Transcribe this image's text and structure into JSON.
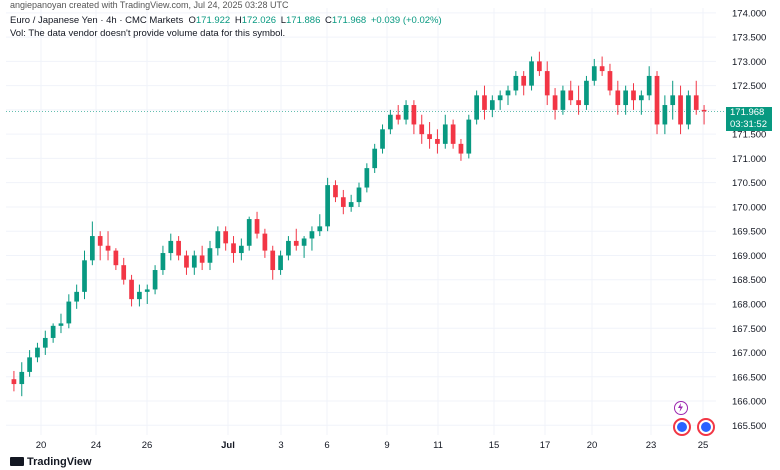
{
  "header": {
    "top_line": "angiepanoyan created with TradingView.com, Jul 24, 2025 03:28 UTC",
    "symbol": "Euro / Japanese Yen · 4h · CMC Markets",
    "open_label": "O",
    "open": "171.922",
    "high_label": "H",
    "high": "172.026",
    "low_label": "L",
    "low": "171.886",
    "close_label": "C",
    "close": "171.968",
    "change": "+0.039 (+0.02%)",
    "volume_note": "Vol: The data vendor doesn't provide volume data for this symbol."
  },
  "price_tag": {
    "price": "171.968",
    "countdown": "03:31:52"
  },
  "footer": {
    "logo_text": "TradingView"
  },
  "colors": {
    "up": "#089981",
    "down": "#f23645",
    "grid": "#f0f3fa",
    "text": "#131722",
    "accent": "#9c27b0",
    "blue": "#2962ff"
  },
  "icons": [
    "lightning-icon",
    "event-icon"
  ],
  "chart_data": {
    "type": "candlestick",
    "title": "Euro / Japanese Yen · 4h · CMC Markets",
    "xlabel": "",
    "ylabel": "",
    "ylim": [
      165.3,
      174.1
    ],
    "grid": true,
    "y_ticks": [
      "174.000",
      "173.500",
      "173.000",
      "172.500",
      "172.000",
      "171.500",
      "171.000",
      "170.500",
      "170.000",
      "169.500",
      "169.000",
      "168.500",
      "168.000",
      "167.500",
      "167.000",
      "166.500",
      "166.000",
      "165.500"
    ],
    "x_ticks": [
      "20",
      "24",
      "26",
      "Jul",
      "3",
      "6",
      "9",
      "11",
      "15",
      "17",
      "20",
      "23",
      "25"
    ],
    "last_price": 171.968,
    "candles": [
      [
        166.45,
        166.62,
        166.2,
        166.35
      ],
      [
        166.35,
        166.8,
        166.1,
        166.6
      ],
      [
        166.6,
        167.05,
        166.5,
        166.9
      ],
      [
        166.9,
        167.2,
        166.8,
        167.1
      ],
      [
        167.1,
        167.45,
        166.95,
        167.3
      ],
      [
        167.3,
        167.6,
        167.2,
        167.55
      ],
      [
        167.55,
        167.8,
        167.4,
        167.6
      ],
      [
        167.6,
        168.2,
        167.5,
        168.05
      ],
      [
        168.05,
        168.4,
        167.9,
        168.25
      ],
      [
        168.25,
        169.1,
        168.1,
        168.9
      ],
      [
        168.9,
        169.7,
        168.8,
        169.4
      ],
      [
        169.4,
        169.5,
        168.9,
        169.2
      ],
      [
        169.2,
        169.5,
        168.9,
        169.1
      ],
      [
        169.1,
        169.15,
        168.7,
        168.8
      ],
      [
        168.8,
        168.95,
        168.4,
        168.5
      ],
      [
        168.5,
        168.6,
        167.95,
        168.1
      ],
      [
        168.1,
        168.4,
        167.95,
        168.25
      ],
      [
        168.25,
        168.4,
        168.0,
        168.3
      ],
      [
        168.3,
        168.8,
        168.2,
        168.7
      ],
      [
        168.7,
        169.2,
        168.6,
        169.05
      ],
      [
        169.05,
        169.45,
        168.9,
        169.3
      ],
      [
        169.3,
        169.4,
        168.9,
        169.0
      ],
      [
        169.0,
        169.1,
        168.6,
        168.75
      ],
      [
        168.75,
        169.1,
        168.6,
        169.0
      ],
      [
        169.0,
        169.2,
        168.7,
        168.85
      ],
      [
        168.85,
        169.3,
        168.7,
        169.15
      ],
      [
        169.15,
        169.6,
        169.0,
        169.5
      ],
      [
        169.5,
        169.6,
        169.1,
        169.25
      ],
      [
        169.25,
        169.4,
        168.85,
        169.05
      ],
      [
        169.05,
        169.35,
        168.9,
        169.2
      ],
      [
        169.2,
        169.8,
        169.1,
        169.75
      ],
      [
        169.75,
        169.9,
        169.35,
        169.45
      ],
      [
        169.45,
        169.55,
        168.95,
        169.1
      ],
      [
        169.1,
        169.2,
        168.5,
        168.7
      ],
      [
        168.7,
        169.1,
        168.6,
        169.0
      ],
      [
        169.0,
        169.4,
        168.9,
        169.3
      ],
      [
        169.3,
        169.55,
        169.1,
        169.2
      ],
      [
        169.2,
        169.4,
        168.95,
        169.35
      ],
      [
        169.35,
        169.6,
        169.1,
        169.5
      ],
      [
        169.5,
        169.85,
        169.4,
        169.6
      ],
      [
        169.6,
        170.6,
        169.5,
        170.45
      ],
      [
        170.45,
        170.55,
        170.1,
        170.2
      ],
      [
        170.2,
        170.35,
        169.85,
        170.0
      ],
      [
        170.0,
        170.25,
        169.9,
        170.1
      ],
      [
        170.1,
        170.5,
        170.0,
        170.4
      ],
      [
        170.4,
        170.9,
        170.3,
        170.8
      ],
      [
        170.8,
        171.3,
        170.7,
        171.2
      ],
      [
        171.2,
        171.7,
        171.1,
        171.6
      ],
      [
        171.6,
        172.0,
        171.5,
        171.9
      ],
      [
        171.9,
        172.1,
        171.7,
        171.8
      ],
      [
        171.8,
        172.2,
        171.7,
        172.1
      ],
      [
        172.1,
        172.2,
        171.5,
        171.7
      ],
      [
        171.7,
        171.9,
        171.3,
        171.5
      ],
      [
        171.5,
        171.75,
        171.2,
        171.4
      ],
      [
        171.4,
        171.6,
        171.1,
        171.3
      ],
      [
        171.3,
        171.9,
        171.2,
        171.7
      ],
      [
        171.7,
        171.8,
        171.2,
        171.3
      ],
      [
        171.3,
        171.4,
        170.95,
        171.1
      ],
      [
        171.1,
        171.9,
        171.0,
        171.8
      ],
      [
        171.8,
        172.4,
        171.7,
        172.3
      ],
      [
        172.3,
        172.5,
        171.8,
        172.0
      ],
      [
        172.0,
        172.3,
        171.85,
        172.2
      ],
      [
        172.2,
        172.4,
        172.0,
        172.3
      ],
      [
        172.3,
        172.5,
        172.1,
        172.4
      ],
      [
        172.4,
        172.8,
        172.3,
        172.7
      ],
      [
        172.7,
        172.8,
        172.3,
        172.5
      ],
      [
        172.5,
        173.1,
        172.4,
        173.0
      ],
      [
        173.0,
        173.2,
        172.7,
        172.8
      ],
      [
        172.8,
        173.0,
        172.1,
        172.3
      ],
      [
        172.3,
        172.45,
        171.8,
        172.0
      ],
      [
        172.0,
        172.5,
        171.9,
        172.4
      ],
      [
        172.4,
        172.6,
        172.1,
        172.2
      ],
      [
        172.2,
        172.5,
        171.9,
        172.1
      ],
      [
        172.1,
        172.7,
        172.0,
        172.6
      ],
      [
        172.6,
        173.05,
        172.5,
        172.9
      ],
      [
        172.9,
        173.1,
        172.7,
        172.8
      ],
      [
        172.8,
        172.95,
        172.3,
        172.4
      ],
      [
        172.4,
        172.6,
        171.9,
        172.1
      ],
      [
        172.1,
        172.5,
        171.9,
        172.4
      ],
      [
        172.4,
        172.55,
        172.0,
        172.2
      ],
      [
        172.2,
        172.4,
        171.9,
        172.3
      ],
      [
        172.3,
        172.9,
        172.2,
        172.7
      ],
      [
        172.7,
        172.8,
        171.5,
        171.7
      ],
      [
        171.7,
        172.3,
        171.5,
        172.1
      ],
      [
        172.1,
        172.6,
        171.8,
        172.3
      ],
      [
        172.3,
        172.5,
        171.5,
        171.7
      ],
      [
        171.7,
        172.4,
        171.6,
        172.3
      ],
      [
        172.3,
        172.6,
        171.9,
        172.0
      ],
      [
        172.0,
        172.1,
        171.7,
        171.97
      ]
    ]
  }
}
